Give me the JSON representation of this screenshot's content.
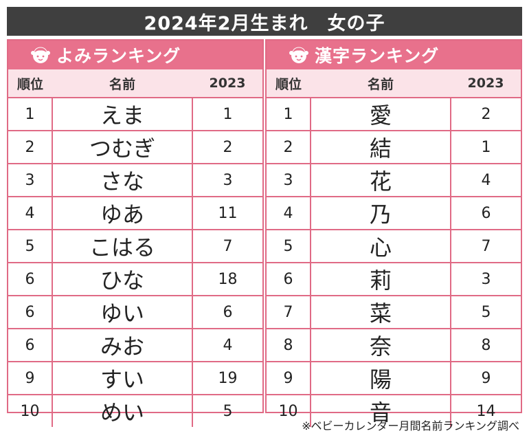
{
  "title": "2024年2月生まれ　女の子",
  "colors": {
    "accent": "#e8718c",
    "header_bg": "#3f3f3f",
    "subheader_bg": "#fbe3e8"
  },
  "yomi": {
    "heading": "よみランキング",
    "icon": "girl-face-icon",
    "columns": [
      "順位",
      "名前",
      "2023"
    ],
    "rows": [
      {
        "rank": "1",
        "name": "えま",
        "prev": "1"
      },
      {
        "rank": "2",
        "name": "つむぎ",
        "prev": "2"
      },
      {
        "rank": "3",
        "name": "さな",
        "prev": "3"
      },
      {
        "rank": "4",
        "name": "ゆあ",
        "prev": "11"
      },
      {
        "rank": "5",
        "name": "こはる",
        "prev": "7"
      },
      {
        "rank": "6",
        "name": "ひな",
        "prev": "18"
      },
      {
        "rank": "6",
        "name": "ゆい",
        "prev": "6"
      },
      {
        "rank": "6",
        "name": "みお",
        "prev": "4"
      },
      {
        "rank": "9",
        "name": "すい",
        "prev": "19"
      },
      {
        "rank": "10",
        "name": "めい",
        "prev": "5"
      }
    ]
  },
  "kanji": {
    "heading": "漢字ランキング",
    "icon": "girl-face-icon",
    "columns": [
      "順位",
      "名前",
      "2023"
    ],
    "rows": [
      {
        "rank": "1",
        "name": "愛",
        "prev": "2"
      },
      {
        "rank": "2",
        "name": "結",
        "prev": "1"
      },
      {
        "rank": "3",
        "name": "花",
        "prev": "4"
      },
      {
        "rank": "4",
        "name": "乃",
        "prev": "6"
      },
      {
        "rank": "5",
        "name": "心",
        "prev": "7"
      },
      {
        "rank": "6",
        "name": "莉",
        "prev": "3"
      },
      {
        "rank": "7",
        "name": "菜",
        "prev": "5"
      },
      {
        "rank": "8",
        "name": "奈",
        "prev": "8"
      },
      {
        "rank": "9",
        "name": "陽",
        "prev": "9"
      },
      {
        "rank": "10",
        "name": "音",
        "prev": "14"
      }
    ]
  },
  "footnote": "※ベビーカレンダー月間名前ランキング調べ"
}
